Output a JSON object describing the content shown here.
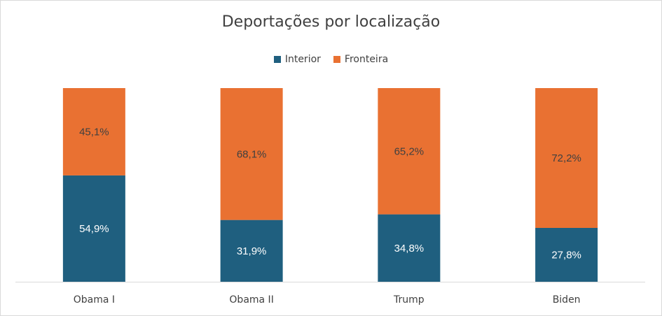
{
  "chart_data": {
    "type": "bar",
    "stacked": true,
    "title": "Deportações por localização",
    "categories": [
      "Obama I",
      "Obama II",
      "Trump",
      "Biden"
    ],
    "series": [
      {
        "name": "Interior",
        "color": "#1f5f7f",
        "values": [
          54.9,
          31.9,
          34.8,
          27.8
        ],
        "labels": [
          "54,9%",
          "31,9%",
          "34,8%",
          "27,8%"
        ],
        "label_color": "#ffffff"
      },
      {
        "name": "Fronteira",
        "color": "#e97132",
        "values": [
          45.1,
          68.1,
          65.2,
          72.2
        ],
        "labels": [
          "45,1%",
          "68,1%",
          "65,2%",
          "72,2%"
        ],
        "label_color": "#404040"
      }
    ],
    "ylim": [
      0,
      100
    ],
    "legend_position": "top",
    "grid": false
  }
}
